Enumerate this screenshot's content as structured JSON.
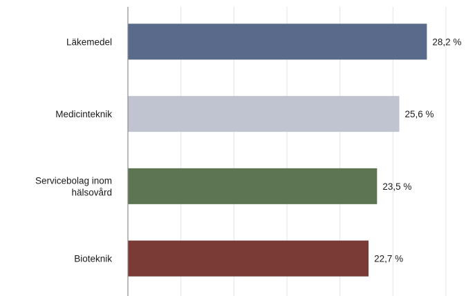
{
  "chart_data": {
    "type": "bar",
    "orientation": "horizontal",
    "categories": [
      [
        "Läkemedel"
      ],
      [
        "Medicinteknik"
      ],
      [
        "Servicebolag inom",
        "hälsovård"
      ],
      [
        "Bioteknik"
      ]
    ],
    "values": [
      28.2,
      25.6,
      23.5,
      22.7
    ],
    "value_labels": [
      "28,2 %",
      "25,6 %",
      "23,5 %",
      "22,7 %"
    ],
    "colors": [
      "#5a6a8a",
      "#bfc4d0",
      "#5e7553",
      "#7a3a35"
    ],
    "xlim": [
      0,
      30
    ],
    "grid": true,
    "title": "",
    "xlabel": "",
    "ylabel": ""
  }
}
